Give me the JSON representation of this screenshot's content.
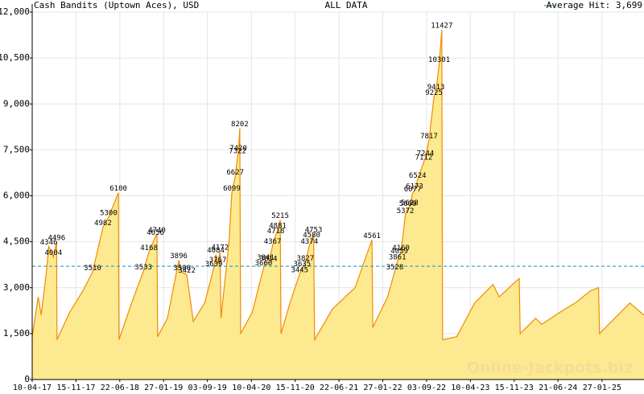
{
  "chart_data": {
    "type": "area",
    "title": "Cash Bandits (Uptown Aces), USD",
    "subtitle": "ALL DATA",
    "watermark": "Online-Jackpots.biz",
    "reference_line": {
      "value": 3699,
      "label": "Average Hit: 3,699",
      "color": "#4a9fc8"
    },
    "color": "#f08c00",
    "fill": "#fde98f",
    "label_color": "#c00000",
    "grid": true,
    "xlim": [
      "10-04-17",
      "25-08-25"
    ],
    "xticks": [
      "10-04-17",
      "15-11-17",
      "22-06-18",
      "27-01-19",
      "03-09-19",
      "10-04-20",
      "15-11-20",
      "22-06-21",
      "27-01-22",
      "03-09-22",
      "10-04-23",
      "15-11-23",
      "21-06-24",
      "27-01-25"
    ],
    "ylim": [
      0,
      12000
    ],
    "yticks": [
      0,
      {
        "value": 1500,
        "label": "1,500"
      },
      {
        "value": 3000,
        "label": "3,000"
      },
      {
        "value": 4500,
        "label": "4,500"
      },
      {
        "value": 6000,
        "label": "6,000"
      },
      {
        "value": 7500,
        "label": "7,500"
      },
      {
        "value": 9000,
        "label": "9,000"
      },
      {
        "value": 10500,
        "label": "10,500"
      },
      {
        "value": 12000,
        "label": "12,000"
      }
    ],
    "x": [
      "10-04-17",
      "10-05-17",
      "25-05-17",
      "20-06-17",
      "02-07-17",
      "25-07-17",
      "10-08-17",
      "12-08-17",
      "15-10-17",
      "20-12-17",
      "06-02-18",
      "30-03-18",
      "27-04-18",
      "15-06-18",
      "18-06-18",
      "20-08-18",
      "18-10-18",
      "15-11-18",
      "17-12-18",
      "25-12-18",
      "28-12-18",
      "15-02-19",
      "13-04-19",
      "29-04-19",
      "23-05-19",
      "25-06-19",
      "20-08-19",
      "05-10-19",
      "15-10-19",
      "25-10-19",
      "05-11-19",
      "10-11-19",
      "20-12-19",
      "03-01-20",
      "20-01-20",
      "01-02-20",
      "05-02-20",
      "12-02-20",
      "16-02-20",
      "15-04-20",
      "10-06-20",
      "20-06-20",
      "05-07-20",
      "25-07-20",
      "10-08-20",
      "20-08-20",
      "01-09-20",
      "05-09-20",
      "20-10-20",
      "07-12-20",
      "20-12-20",
      "05-01-21",
      "25-01-21",
      "05-02-21",
      "15-02-21",
      "20-02-21",
      "20-05-21",
      "10-09-21",
      "04-12-21",
      "08-12-21",
      "20-02-22",
      "28-03-22",
      "10-04-22",
      "20-04-22",
      "28-04-22",
      "20-05-22",
      "01-06-22",
      "10-06-22",
      "25-06-22",
      "05-07-22",
      "20-07-22",
      "20-08-22",
      "28-08-22",
      "15-09-22",
      "10-10-22",
      "20-10-22",
      "05-11-22",
      "18-11-22",
      "22-11-22",
      "01-02-23",
      "01-05-23",
      "01-08-23",
      "01-09-23",
      "10-12-23",
      "15-12-23",
      "01-03-24",
      "01-04-24",
      "01-07-24",
      "15-09-24",
      "01-12-24",
      "10-01-25",
      "15-01-25",
      "15-06-25",
      "25-08-25"
    ],
    "values": [
      1400,
      2700,
      2100,
      3500,
      4346,
      4004,
      4496,
      1300,
      2200,
      2900,
      3510,
      4982,
      5300,
      6100,
      1300,
      2500,
      3533,
      4168,
      4656,
      4740,
      1400,
      2000,
      3896,
      3500,
      3422,
      1900,
      2500,
      3639,
      4084,
      3767,
      4172,
      2000,
      4500,
      6099,
      6627,
      7322,
      7420,
      8202,
      1500,
      2200,
      3660,
      3841,
      3814,
      4367,
      4718,
      4881,
      5215,
      1500,
      2500,
      3445,
      3635,
      3827,
      4374,
      4580,
      4753,
      1300,
      2300,
      3000,
      4561,
      1700,
      2700,
      3528,
      3861,
      4059,
      4160,
      5372,
      5600,
      5628,
      6077,
      6173,
      6524,
      7112,
      7244,
      7817,
      9225,
      9413,
      10301,
      11427,
      1300,
      1400,
      2500,
      3100,
      2700,
      3300,
      1500,
      2000,
      1800,
      2200,
      2500,
      2900,
      3000,
      1500,
      2500,
      2100
    ],
    "hits": {
      "x": [
        "02-07-17",
        "25-07-17",
        "10-08-17",
        "06-02-18",
        "30-03-18",
        "27-04-18",
        "15-06-18",
        "18-10-18",
        "15-11-18",
        "17-12-18",
        "25-12-18",
        "13-04-19",
        "29-04-19",
        "23-05-19",
        "05-10-19",
        "15-10-19",
        "25-10-19",
        "05-11-19",
        "03-01-20",
        "20-01-20",
        "01-02-20",
        "05-02-20",
        "12-02-20",
        "10-06-20",
        "20-06-20",
        "05-07-20",
        "25-07-20",
        "10-08-20",
        "20-08-20",
        "01-09-20",
        "07-12-20",
        "20-12-20",
        "05-01-21",
        "25-01-21",
        "05-02-21",
        "15-02-21",
        "04-12-21",
        "28-03-22",
        "10-04-22",
        "20-04-22",
        "28-04-22",
        "20-05-22",
        "01-06-22",
        "10-06-22",
        "25-06-22",
        "05-07-22",
        "20-07-22",
        "20-08-22",
        "28-08-22",
        "15-09-22",
        "10-10-22",
        "20-10-22",
        "05-11-22",
        "18-11-22"
      ],
      "values": [
        4346,
        4004,
        4496,
        3510,
        4982,
        5300,
        6100,
        3533,
        4168,
        4656,
        4740,
        3896,
        3500,
        3422,
        3639,
        4084,
        3767,
        4172,
        6099,
        6627,
        7322,
        7420,
        8202,
        3660,
        3841,
        3814,
        4367,
        4718,
        4881,
        5215,
        3445,
        3635,
        3827,
        4374,
        4580,
        4753,
        4561,
        3528,
        3861,
        4059,
        4160,
        5372,
        5600,
        5628,
        6077,
        6173,
        6524,
        7112,
        7244,
        7817,
        9225,
        9413,
        10301,
        11427
      ]
    }
  }
}
